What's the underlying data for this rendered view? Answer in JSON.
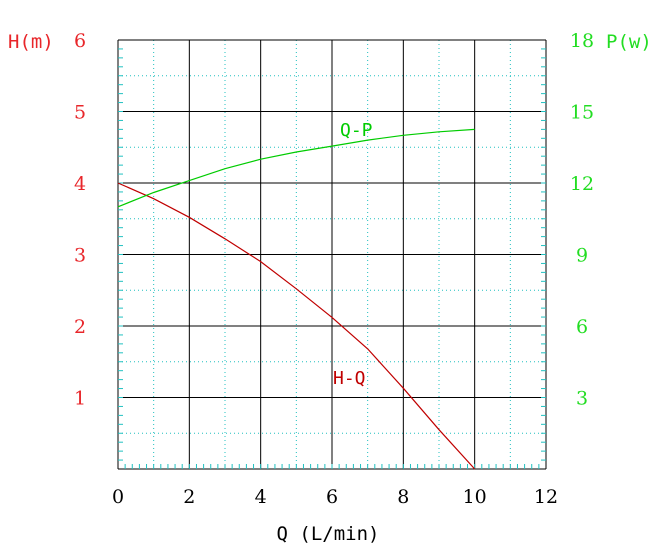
{
  "chart_data": {
    "type": "line",
    "title": "",
    "xlabel": "Q (L/min)",
    "ylabel_left": "H(m)",
    "ylabel_right": "P(w)",
    "xlim": [
      0,
      12
    ],
    "ylim_left": [
      0,
      6
    ],
    "ylim_right": [
      0,
      18
    ],
    "grid": true,
    "x_ticks": [
      "0",
      "2",
      "4",
      "6",
      "8",
      "10",
      "12"
    ],
    "y_left_ticks": [
      "1",
      "2",
      "3",
      "4",
      "5",
      "6"
    ],
    "y_right_ticks": [
      "3",
      "6",
      "9",
      "12",
      "15",
      "18"
    ],
    "series": [
      {
        "name": "H-Q",
        "axis": "left",
        "color": "#c00000",
        "x": [
          0,
          1,
          2,
          3,
          4,
          5,
          6,
          7,
          8,
          9,
          10
        ],
        "y": [
          4.0,
          3.78,
          3.52,
          3.22,
          2.9,
          2.52,
          2.12,
          1.68,
          1.13,
          0.55,
          0.0
        ]
      },
      {
        "name": "Q-P",
        "axis": "right",
        "color": "#00cc00",
        "x": [
          0,
          1,
          2,
          3,
          4,
          5,
          6,
          7,
          8,
          9,
          10
        ],
        "y": [
          11.0,
          11.6,
          12.1,
          12.6,
          13.0,
          13.3,
          13.55,
          13.8,
          14.0,
          14.15,
          14.25
        ]
      }
    ],
    "annotations": [
      "H-Q",
      "Q-P"
    ],
    "colors": {
      "left_axis": "#e8262a",
      "right_axis": "#22dd22",
      "grid_major": "#000000",
      "grid_minor": "#20c0c0",
      "x_axis": "#000000"
    }
  }
}
